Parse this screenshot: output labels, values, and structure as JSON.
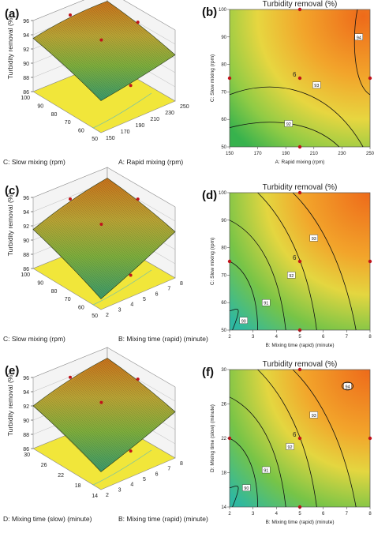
{
  "chart_data": [
    {
      "type": "surface3d",
      "panel_label": "(a)",
      "zlabel": "Turbidity  removal  (%)",
      "xlabel": "A: Rapid mixing  (rpm)",
      "ylabel": "C: Slow mixing   (rpm)",
      "z_ticks": [
        "86",
        "88",
        "90",
        "92",
        "94",
        "96"
      ],
      "x_ticks": [
        "150",
        "170",
        "190",
        "210",
        "230",
        "250"
      ],
      "y_ticks": [
        "50",
        "60",
        "70",
        "80",
        "90",
        "100"
      ],
      "zlim": [
        86,
        96
      ],
      "surface_corners": {
        "front": 90.5,
        "left": 93.5,
        "back": 94.5,
        "right": 92.5
      }
    },
    {
      "type": "contour",
      "panel_label": "(b)",
      "title": "Turbidity  removal  (%)",
      "xlabel": "A: Rapid mixing (rpm)",
      "ylabel": "C: Slow mixing (rpm)",
      "x_ticks": [
        "150",
        "170",
        "190",
        "210",
        "230",
        "250"
      ],
      "y_ticks": [
        "50",
        "60",
        "70",
        "80",
        "90",
        "100"
      ],
      "xlim": [
        150,
        250
      ],
      "ylim": [
        50,
        100
      ],
      "contour_labels": [
        "92",
        "93",
        "94"
      ],
      "center_point_count": "6"
    },
    {
      "type": "surface3d",
      "panel_label": "(c)",
      "zlabel": "Turbidity  removal  (%)",
      "xlabel": "B: Mixing time (rapid)  (minute)",
      "ylabel": "C: Slow mixing   (rpm)",
      "z_ticks": [
        "86",
        "88",
        "90",
        "92",
        "94",
        "96"
      ],
      "x_ticks": [
        "2",
        "3",
        "4",
        "5",
        "6",
        "7",
        "8"
      ],
      "y_ticks": [
        "50",
        "60",
        "70",
        "80",
        "90",
        "100"
      ],
      "zlim": [
        86,
        96
      ],
      "surface_corners": {
        "front": 87.5,
        "left": 91.5,
        "back": 94.5,
        "right": 92.5
      }
    },
    {
      "type": "contour",
      "panel_label": "(d)",
      "title": "Turbidity  removal  (%)",
      "xlabel": "B: Mixing time (rapid) (minute)",
      "ylabel": "C: Slow mixing (rpm)",
      "x_ticks": [
        "2",
        "3",
        "4",
        "5",
        "6",
        "7",
        "8"
      ],
      "y_ticks": [
        "50",
        "60",
        "70",
        "80",
        "90",
        "100"
      ],
      "xlim": [
        2,
        8
      ],
      "ylim": [
        50,
        100
      ],
      "contour_labels": [
        "90",
        "91",
        "92",
        "93"
      ],
      "center_point_count": "6"
    },
    {
      "type": "surface3d",
      "panel_label": "(e)",
      "zlabel": "Turbidity  removal  (%)",
      "xlabel": "B: Mixing time (rapid)  (minute)",
      "ylabel": "D: Mixing time (slow)  (minute)",
      "z_ticks": [
        "86",
        "88",
        "90",
        "92",
        "94",
        "96"
      ],
      "x_ticks": [
        "2",
        "3",
        "4",
        "5",
        "6",
        "7",
        "8"
      ],
      "y_ticks": [
        "14",
        "18",
        "22",
        "26",
        "30"
      ],
      "zlim": [
        86,
        96
      ],
      "surface_corners": {
        "front": 88.5,
        "left": 92,
        "back": 94.5,
        "right": 92.5
      }
    },
    {
      "type": "contour",
      "panel_label": "(f)",
      "title": "Turbidity  removal  (%)",
      "xlabel": "B: Mixing time (rapid) (minute)",
      "ylabel": "D: Mixing time (slow) (minute)",
      "x_ticks": [
        "2",
        "3",
        "4",
        "5",
        "6",
        "7",
        "8"
      ],
      "y_ticks": [
        "14",
        "18",
        "22",
        "26",
        "30"
      ],
      "xlim": [
        2,
        8
      ],
      "ylim": [
        14,
        30
      ],
      "contour_labels": [
        "90",
        "91",
        "92",
        "93",
        "94"
      ],
      "center_point_count": "6"
    }
  ]
}
